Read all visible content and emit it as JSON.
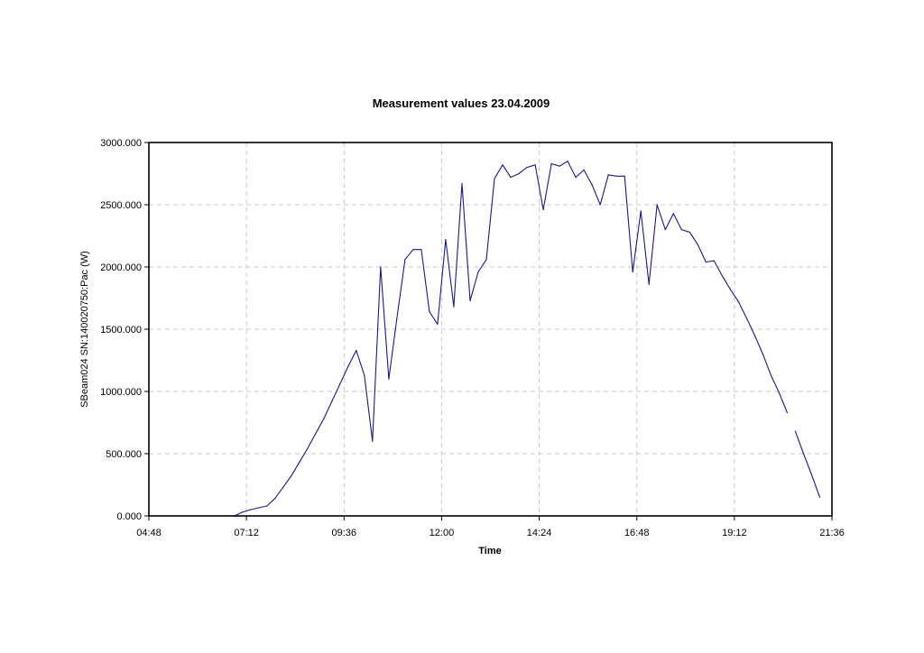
{
  "chart_data": {
    "type": "line",
    "title": "Measurement values 23.04.2009",
    "xlabel": "Time",
    "ylabel": "SBeam024 SN:140020750:Pac (W)",
    "x_ticks": [
      "04:48",
      "07:12",
      "09:36",
      "12:00",
      "14:24",
      "16:48",
      "19:12",
      "21:36"
    ],
    "y_ticks": [
      "0.000",
      "500.000",
      "1000.000",
      "1500.000",
      "2000.000",
      "2500.000",
      "3000.000"
    ],
    "xlim": [
      "04:48",
      "21:36"
    ],
    "ylim": [
      0,
      3000
    ],
    "grid": true,
    "series_color": "#1a1a80",
    "series": [
      {
        "x": [
          "06:54",
          "07:06",
          "07:18",
          "07:30",
          "07:42",
          "07:54",
          "08:06",
          "08:18",
          "08:30",
          "08:42",
          "08:54",
          "09:06",
          "09:18",
          "09:30",
          "09:42",
          "09:54",
          "10:06",
          "10:18",
          "10:30",
          "10:42",
          "10:54",
          "11:06",
          "11:18",
          "11:30",
          "11:42",
          "11:54",
          "12:06",
          "12:18",
          "12:30",
          "12:42",
          "12:54",
          "13:06",
          "13:18",
          "13:30",
          "13:42",
          "13:54",
          "14:06",
          "14:18",
          "14:30",
          "14:42",
          "14:54",
          "15:06",
          "15:18",
          "15:30",
          "15:42",
          "15:54",
          "16:06",
          "16:18",
          "16:30",
          "16:42",
          "16:54",
          "17:06",
          "17:18",
          "17:30",
          "17:42",
          "17:54",
          "18:06",
          "18:18",
          "18:30",
          "18:42",
          "18:54",
          "19:06",
          "19:18",
          "19:30",
          "19:42",
          "19:54",
          "20:06",
          "20:18",
          "20:30"
        ],
        "values": [
          0,
          30,
          50,
          65,
          80,
          140,
          230,
          320,
          430,
          540,
          660,
          780,
          920,
          1060,
          1200,
          1330,
          1130,
          600,
          2000,
          1100,
          1590,
          2060,
          2140,
          2140,
          1640,
          1540,
          2220,
          1680,
          2670,
          1730,
          1960,
          2060,
          2710,
          2820,
          2720,
          2750,
          2800,
          2820,
          2460,
          2830,
          2810,
          2850,
          2720,
          2780,
          2660,
          2500,
          2740,
          2730,
          2730,
          1960,
          2450,
          1860,
          2500,
          2300,
          2430,
          2300,
          2280,
          2180,
          2040,
          2050,
          1930,
          1820,
          1720,
          1590,
          1450,
          1300,
          1130,
          990,
          830
        ]
      },
      {
        "x": [
          "20:42",
          "20:54",
          "21:06",
          "21:18"
        ],
        "values": [
          680,
          500,
          330,
          150
        ]
      }
    ]
  }
}
